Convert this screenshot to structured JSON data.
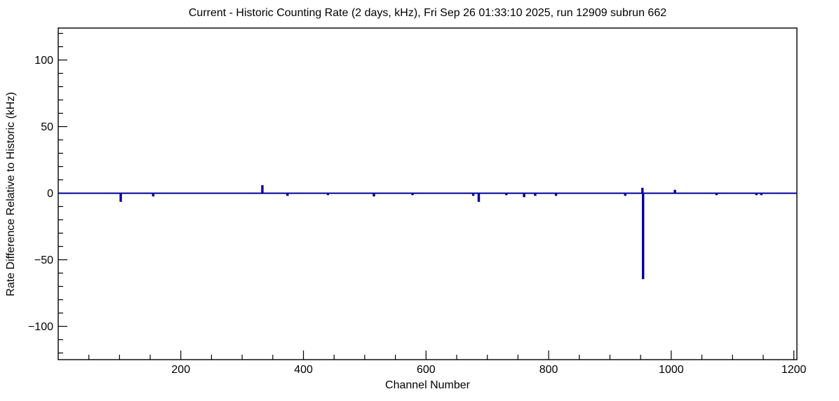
{
  "chart_data": {
    "type": "line",
    "title": "Current - Historic Counting Rate (2 days, kHz), Fri Sep 26 01:33:10 2025, run 12909 subrun 662",
    "xlabel": "Channel Number",
    "ylabel": "Rate Difference Relative to Historic (kHz)",
    "xlim": [
      0,
      1205
    ],
    "ylim": [
      -125,
      124
    ],
    "x_major_ticks": [
      200,
      400,
      600,
      800,
      1000,
      1200
    ],
    "x_minor_step": 50,
    "y_major_ticks": [
      -100,
      -50,
      0,
      50,
      100
    ],
    "y_minor_step": 10,
    "grid": false,
    "legend": "none",
    "frame_color": "#000000",
    "line_color": "#00009c",
    "background_color": "#ffffff",
    "baseline": 0,
    "series": [
      {
        "name": "rate-difference-histogram",
        "description": "baseline at 0 kHz with spikes [channel, kHz]",
        "spikes": [
          [
            102,
            -6
          ],
          [
            155,
            -2
          ],
          [
            333,
            5.5
          ],
          [
            374,
            -1.5
          ],
          [
            440,
            -1
          ],
          [
            515,
            -2
          ],
          [
            578,
            -1
          ],
          [
            677,
            -1.5
          ],
          [
            686,
            -6
          ],
          [
            731,
            -1
          ],
          [
            760,
            -2.5
          ],
          [
            778,
            -1.5
          ],
          [
            812,
            -1.5
          ],
          [
            925,
            -1.5
          ],
          [
            953,
            3.5
          ],
          [
            954,
            -64
          ],
          [
            1006,
            2
          ],
          [
            1074,
            -1
          ],
          [
            1139,
            -1
          ],
          [
            1147,
            -1
          ]
        ]
      }
    ]
  }
}
